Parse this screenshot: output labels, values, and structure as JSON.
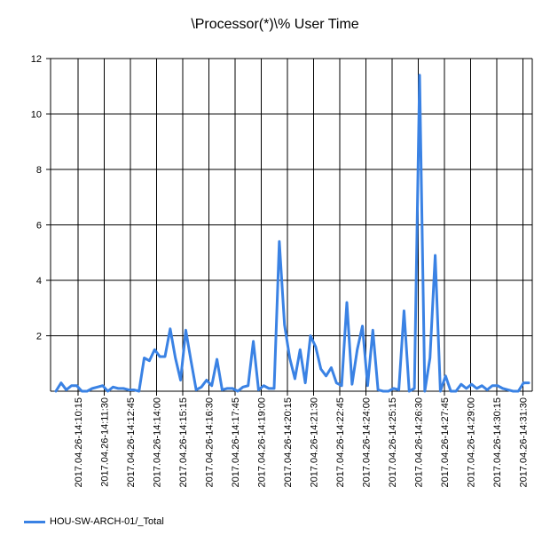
{
  "chart_data": {
    "type": "line",
    "title": "\\Processor(*)\\% User Time",
    "xlabel": "",
    "ylabel": "",
    "ylim": [
      0,
      12
    ],
    "yticks": [
      2,
      4,
      6,
      8,
      10,
      12
    ],
    "grid": true,
    "legend_position": "bottom-left",
    "x_tick_labels": [
      "2017.04.26-14:10:15",
      "2017.04.26-14:11:30",
      "2017.04.26-14:12:45",
      "2017.04.26-14:14:00",
      "2017.04.26-14:15:15",
      "2017.04.26-14:16:30",
      "2017.04.26-14:17:45",
      "2017.04.26-14:19:00",
      "2017.04.26-14:20:15",
      "2017.04.26-14:21:30",
      "2017.04.26-14:22:45",
      "2017.04.26-14:24:00",
      "2017.04.26-14:25:15",
      "2017.04.26-14:26:30",
      "2017.04.26-14:27:45",
      "2017.04.26-14:29:00",
      "2017.04.26-14:30:15",
      "2017.04.26-14:31:30"
    ],
    "series": [
      {
        "name": "HOU-SW-ARCH-01/_Total",
        "color": "#3A82E4",
        "values": [
          0.0,
          0.3,
          0.05,
          0.2,
          0.2,
          0.0,
          0.0,
          0.1,
          0.15,
          0.2,
          0.0,
          0.15,
          0.1,
          0.1,
          0.05,
          0.05,
          0.0,
          1.2,
          1.1,
          1.5,
          1.25,
          1.25,
          2.25,
          1.2,
          0.4,
          2.2,
          1.1,
          0.05,
          0.15,
          0.4,
          0.2,
          1.15,
          0.05,
          0.1,
          0.1,
          0.0,
          0.15,
          0.2,
          1.8,
          0.05,
          0.2,
          0.1,
          0.1,
          5.4,
          2.4,
          1.2,
          0.45,
          1.5,
          0.3,
          2.0,
          1.6,
          0.8,
          0.55,
          0.85,
          0.3,
          0.2,
          3.2,
          0.25,
          1.5,
          2.35,
          0.2,
          2.2,
          0.05,
          0.0,
          0.0,
          0.1,
          0.05,
          2.9,
          0.0,
          0.1,
          11.4,
          0.0,
          1.2,
          4.9,
          0.0,
          0.55,
          0.0,
          0.0,
          0.25,
          0.1,
          0.25,
          0.1,
          0.2,
          0.05,
          0.2,
          0.2,
          0.1,
          0.05,
          0.0,
          0.0,
          0.3,
          0.3
        ]
      }
    ]
  }
}
